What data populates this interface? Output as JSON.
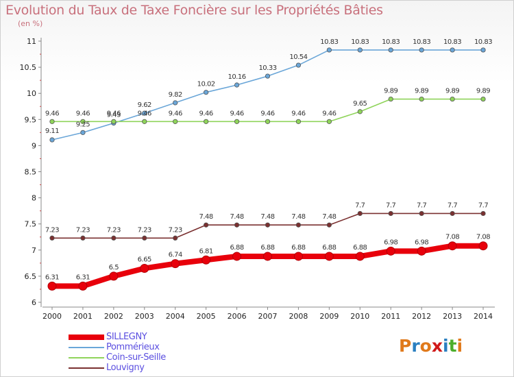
{
  "title": "Evolution du Taux de Taxe Foncière sur les Propriétés Bâties",
  "unit_label": "(en %)",
  "logo": {
    "letters": [
      "P",
      "r",
      "o",
      "x",
      "i",
      "t",
      "i"
    ],
    "colors": [
      "#e07a1c",
      "#2a7fc0",
      "#e07a1c",
      "#d01818",
      "#2a7fc0",
      "#4cae2c",
      "#e07a1c"
    ]
  },
  "chart_data": {
    "type": "line",
    "x": [
      2000,
      2001,
      2002,
      2003,
      2004,
      2005,
      2006,
      2007,
      2008,
      2009,
      2010,
      2011,
      2012,
      2013,
      2014
    ],
    "ylim": [
      6,
      11
    ],
    "yticks": [
      "6",
      "6.5",
      "7",
      "7.5",
      "8",
      "8.5",
      "9",
      "9.5",
      "10",
      "10.5",
      "11"
    ],
    "grid": false,
    "legend_position": "bottom-left",
    "series": [
      {
        "name": "SILLEGNY",
        "color": "#e8000b",
        "values": [
          6.31,
          6.31,
          6.5,
          6.65,
          6.74,
          6.81,
          6.88,
          6.88,
          6.88,
          6.88,
          6.88,
          6.98,
          6.98,
          7.08,
          7.08
        ],
        "labels": [
          "6.31",
          "6.31",
          "6.5",
          "6.65",
          "6.74",
          "6.81",
          "6.88",
          "6.88",
          "6.88",
          "6.88",
          "6.88",
          "6.98",
          "6.98",
          "7.08",
          "7.08"
        ]
      },
      {
        "name": "Pommérieux",
        "color": "#6aa6d8",
        "values": [
          9.11,
          9.25,
          9.43,
          9.62,
          9.82,
          10.02,
          10.16,
          10.33,
          10.54,
          10.83,
          10.83,
          10.83,
          10.83,
          10.83,
          10.83
        ],
        "labels": [
          "9.11",
          "9.25",
          "9.43",
          "9.62",
          "9.82",
          "10.02",
          "10.16",
          "10.33",
          "10.54",
          "10.83",
          "10.83",
          "10.83",
          "10.83",
          "10.83",
          "10.83"
        ]
      },
      {
        "name": "Coin-sur-Seille",
        "color": "#8fd45a",
        "values": [
          9.46,
          9.46,
          9.46,
          9.46,
          9.46,
          9.46,
          9.46,
          9.46,
          9.46,
          9.46,
          9.65,
          9.89,
          9.89,
          9.89,
          9.89
        ],
        "labels": [
          "9.46",
          "9.46",
          "9.46",
          "9.46",
          "9.46",
          "9.46",
          "9.46",
          "9.46",
          "9.46",
          "9.46",
          "9.65",
          "9.89",
          "9.89",
          "9.89",
          "9.89"
        ]
      },
      {
        "name": "Louvigny",
        "color": "#7a3030",
        "values": [
          7.23,
          7.23,
          7.23,
          7.23,
          7.23,
          7.48,
          7.48,
          7.48,
          7.48,
          7.48,
          7.7,
          7.7,
          7.7,
          7.7,
          7.7
        ],
        "labels": [
          "7.23",
          "7.23",
          "7.23",
          "7.23",
          "7.23",
          "7.48",
          "7.48",
          "7.48",
          "7.48",
          "7.48",
          "7.7",
          "7.7",
          "7.7",
          "7.7",
          "7.7"
        ]
      }
    ]
  }
}
